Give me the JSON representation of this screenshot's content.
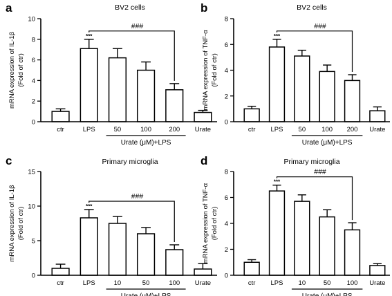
{
  "chart_data": [
    {
      "type": "bar",
      "panel": "a",
      "title": "BV2 cells",
      "ylabel": "mRNA expression of IL-1β",
      "ylabel2": "(Fold of ctr)",
      "xlabel": "Urate (μM)+LPS",
      "categories": [
        "ctr",
        "LPS",
        "50",
        "100",
        "200",
        "Urate"
      ],
      "values": [
        1.0,
        7.1,
        6.2,
        5.0,
        3.1,
        0.9
      ],
      "errors": [
        0.25,
        0.9,
        0.9,
        0.8,
        0.6,
        0.2
      ],
      "ylim": [
        0,
        10
      ],
      "yticks": [
        "0",
        "2",
        "4",
        "6",
        "8",
        "10"
      ],
      "stars": "***",
      "sig_label": "###",
      "sig_from": 1,
      "sig_to": 4
    },
    {
      "type": "bar",
      "panel": "b",
      "title": "BV2 cells",
      "ylabel": "mRNA expression of TNF-α",
      "ylabel2": "(Fold of ctr)",
      "xlabel": "Urate (μM)+LPS",
      "categories": [
        "ctr",
        "LPS",
        "50",
        "100",
        "200",
        "Urate"
      ],
      "values": [
        1.0,
        5.8,
        5.1,
        3.9,
        3.2,
        0.85
      ],
      "errors": [
        0.2,
        0.6,
        0.45,
        0.5,
        0.45,
        0.3
      ],
      "ylim": [
        0,
        8
      ],
      "yticks": [
        "0",
        "2",
        "4",
        "6",
        "8"
      ],
      "stars": "***",
      "sig_label": "###",
      "sig_from": 1,
      "sig_to": 4
    },
    {
      "type": "bar",
      "panel": "c",
      "title": "Primary microglia",
      "ylabel": "mRNA expression of IL-1β",
      "ylabel2": "(Fold of ctr)",
      "xlabel": "Urate (μM)+LPS",
      "categories": [
        "ctr",
        "LPS",
        "10",
        "50",
        "100",
        "Urate"
      ],
      "values": [
        1.0,
        8.3,
        7.5,
        6.0,
        3.7,
        0.9
      ],
      "errors": [
        0.6,
        1.2,
        1.0,
        0.9,
        0.7,
        0.8
      ],
      "ylim": [
        0,
        15
      ],
      "yticks": [
        "0",
        "5",
        "10",
        "15"
      ],
      "stars": "***",
      "sig_label": "###",
      "sig_from": 1,
      "sig_to": 4
    },
    {
      "type": "bar",
      "panel": "d",
      "title": "Primary microglia",
      "ylabel": "mRNA expression of TNF-α",
      "ylabel2": "(Fold of ctr)",
      "xlabel": "Urate (μM)+LPS",
      "categories": [
        "ctr",
        "LPS",
        "10",
        "50",
        "100",
        "Urate"
      ],
      "values": [
        1.0,
        6.5,
        5.7,
        4.5,
        3.5,
        0.75
      ],
      "errors": [
        0.2,
        0.45,
        0.5,
        0.55,
        0.55,
        0.15
      ],
      "ylim": [
        0,
        8
      ],
      "yticks": [
        "0",
        "2",
        "4",
        "6",
        "8"
      ],
      "stars": "***",
      "sig_label": "###",
      "sig_from": 1,
      "sig_to": 4
    }
  ]
}
